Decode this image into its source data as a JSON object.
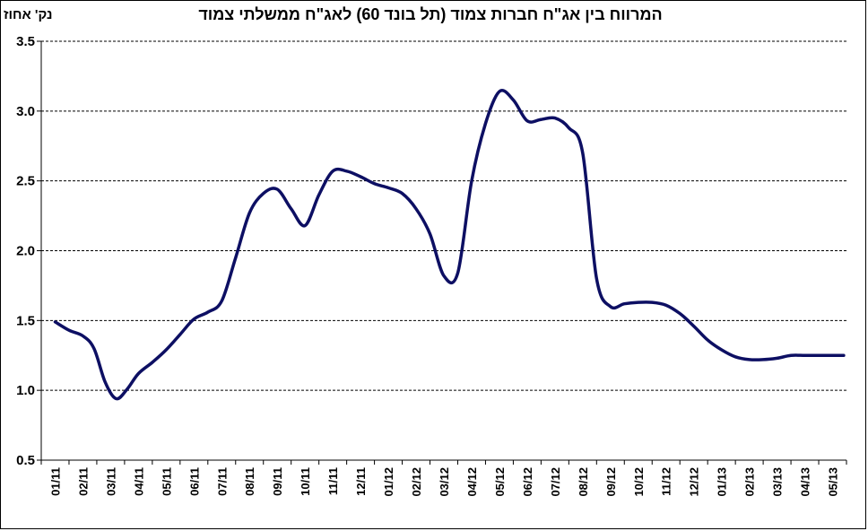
{
  "chart_data": {
    "type": "line",
    "title": "המרווח בין אג\"ח חברות צמוד (תל בונד 60) לאג\"ח ממשלתי צמוד",
    "ylabel": "נק' אחוז",
    "xlabel": "",
    "ylim": [
      0.5,
      3.5
    ],
    "yticks": [
      "0.5",
      "1.0",
      "1.5",
      "2.0",
      "2.5",
      "3.0",
      "3.5"
    ],
    "grid": true,
    "categories": [
      "01/11",
      "02/11",
      "03/11",
      "04/11",
      "05/11",
      "06/11",
      "07/11",
      "08/11",
      "09/11",
      "10/11",
      "11/11",
      "12/11",
      "01/12",
      "02/12",
      "03/12",
      "04/12",
      "05/12",
      "06/12",
      "07/12",
      "08/12",
      "09/12",
      "10/12",
      "11/12",
      "12/12",
      "01/13",
      "02/13",
      "03/13",
      "04/13",
      "05/13"
    ],
    "series": [
      {
        "color": "#0d0f63",
        "x": [
          0,
          0.5,
          1,
          1.4,
          1.8,
          2.2,
          2.6,
          3,
          3.5,
          4,
          4.5,
          5,
          5.5,
          6,
          6.5,
          7,
          7.5,
          8,
          8.5,
          9,
          9.5,
          10,
          10.5,
          11,
          11.5,
          12,
          12.5,
          13,
          13.5,
          14,
          14.5,
          15,
          15.5,
          16,
          16.5,
          17,
          17.5,
          18,
          18.5,
          19,
          19.5,
          20,
          20.5,
          21,
          21.5,
          22,
          22.5,
          23,
          23.5,
          24,
          24.5,
          25,
          25.5,
          26,
          26.5,
          27,
          27.5,
          28,
          28.4
        ],
        "y": [
          1.49,
          1.43,
          1.39,
          1.3,
          1.06,
          0.94,
          1.01,
          1.12,
          1.2,
          1.29,
          1.4,
          1.51,
          1.56,
          1.64,
          1.95,
          2.27,
          2.41,
          2.44,
          2.3,
          2.18,
          2.4,
          2.57,
          2.57,
          2.53,
          2.48,
          2.45,
          2.41,
          2.3,
          2.12,
          1.82,
          1.84,
          2.5,
          2.91,
          3.14,
          3.08,
          2.93,
          2.94,
          2.95,
          2.88,
          2.7,
          1.8,
          1.6,
          1.62,
          1.63,
          1.63,
          1.61,
          1.55,
          1.46,
          1.36,
          1.29,
          1.24,
          1.22,
          1.22,
          1.23,
          1.25,
          1.25,
          1.25,
          1.25,
          1.25
        ]
      }
    ]
  }
}
